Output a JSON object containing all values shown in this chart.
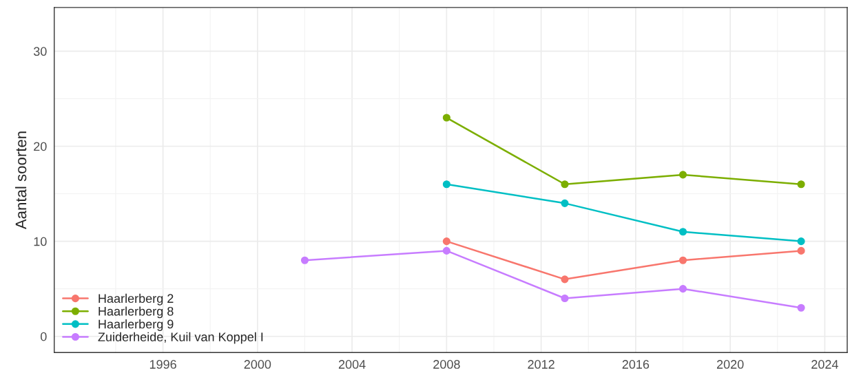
{
  "chart_data": {
    "type": "line",
    "ylabel": "Aantal soorten",
    "x": [
      2008,
      2013,
      2018,
      2023
    ],
    "series": [
      {
        "name": "Haarlerberg 2",
        "color": "#f8766d",
        "values": [
          10,
          6,
          8,
          9
        ]
      },
      {
        "name": "Haarlerberg 8",
        "color": "#7cae00",
        "values": [
          23,
          16,
          17,
          16
        ]
      },
      {
        "name": "Haarlerberg 9",
        "color": "#00bfc4",
        "values": [
          16,
          14,
          11,
          10
        ]
      },
      {
        "name": "Zuiderheide, Kuil van Koppel I",
        "color": "#c77cff",
        "x": [
          2002,
          2008,
          2013,
          2018,
          2023
        ],
        "values": [
          8,
          9,
          4,
          5,
          3
        ]
      }
    ],
    "xlim": [
      1991.4,
      2024.95
    ],
    "xticks": [
      1996,
      2000,
      2004,
      2008,
      2012,
      2016,
      2020,
      2024
    ],
    "ylim": [
      -1.7,
      34.6
    ],
    "yticks": [
      0,
      10,
      20,
      30
    ],
    "grid": true,
    "legend": "bottom left",
    "marker": "circle",
    "line_style": "solid"
  }
}
